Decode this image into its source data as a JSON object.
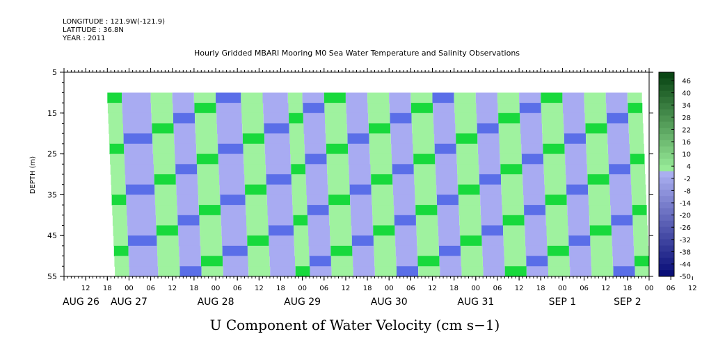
{
  "header": {
    "longitude": "LONGITUDE : 121.9W(-121.9)",
    "latitude": "LATITUDE : 36.8N",
    "year": "YEAR : 2011"
  },
  "chart_data": {
    "type": "heatmap",
    "title": "Hourly Gridded MBARI Mooring M0 Sea Water Temperature and Salinity Observations",
    "xlabel": "U Component of Water Velocity (cm s−1)",
    "ylabel": "DEPTH (m)",
    "y_ticks": [
      "5",
      "15",
      "25",
      "35",
      "45",
      "55"
    ],
    "ylim": [
      55,
      5
    ],
    "x_hour_labels": [
      "12",
      "18",
      "00",
      "06",
      "12",
      "18",
      "00",
      "06",
      "12",
      "18",
      "00",
      "06",
      "12",
      "18",
      "00",
      "06",
      "12",
      "18",
      "00",
      "06",
      "12",
      "18",
      "00",
      "06",
      "12",
      "18",
      "00",
      "06",
      "12",
      "18",
      "00",
      "06"
    ],
    "x_day_labels": [
      "AUG 26",
      "AUG 27",
      "AUG 28",
      "AUG 29",
      "AUG 30",
      "AUG 31",
      "SEP  1",
      "SEP  2"
    ],
    "data_range_hours": [
      18,
      166
    ],
    "data_depth_range": [
      10,
      55
    ],
    "colorbar_labels": [
      "46",
      "40",
      "34",
      "28",
      "22",
      "16",
      "10",
      "4",
      "-2",
      "-8",
      "-14",
      "-20",
      "-26",
      "-32",
      "-38",
      "-44",
      "-50"
    ],
    "colorbar_levels": [
      -50,
      48
    ],
    "oscillation": {
      "description": "alternating eastward (green, positive) and westward (blue, negative) bands",
      "sign_pattern": [
        "+",
        "-",
        "+",
        "-",
        "+",
        "-",
        "+",
        "-",
        "+",
        "-",
        "+",
        "-",
        "+",
        "-",
        "+",
        "-",
        "+",
        "-",
        "+",
        "-",
        "+",
        "-",
        "+",
        "-",
        "+"
      ],
      "phase_hours": [
        18,
        22,
        30,
        36,
        42,
        48,
        55,
        61,
        68,
        72,
        78,
        84,
        90,
        96,
        102,
        108,
        114,
        120,
        126,
        132,
        138,
        144,
        150,
        156,
        162
      ]
    },
    "colors": {
      "positive_light": "#9ff29f",
      "positive_strong": "#18d93c",
      "negative_light": "#a8abf2",
      "negative_strong": "#5a6ee8"
    }
  }
}
